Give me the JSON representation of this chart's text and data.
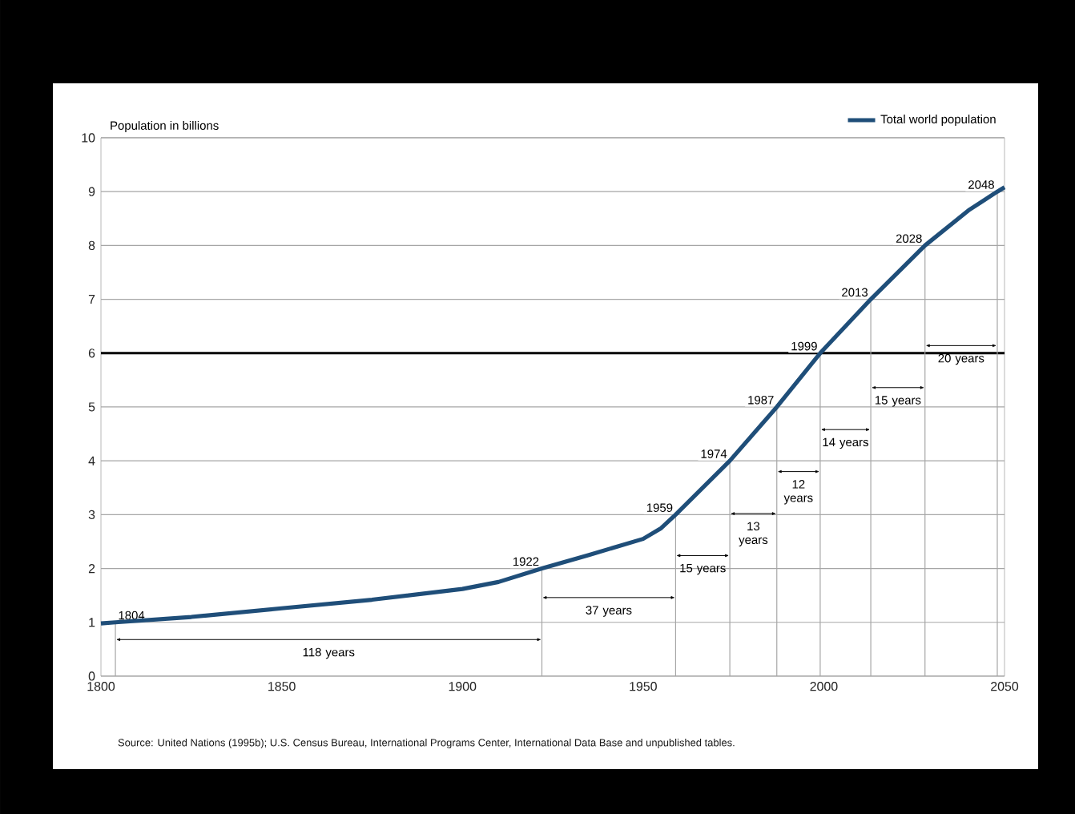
{
  "chart_data": {
    "type": "line",
    "ylabel": "Population in billions",
    "legend": "top right",
    "grid": "y",
    "marker": "none",
    "line_style": "solid",
    "xlim": [
      1800,
      2050
    ],
    "ylim": [
      0,
      10
    ],
    "xticks": [
      1800,
      1850,
      1900,
      1950,
      2000,
      2050
    ],
    "yticks": [
      0,
      1,
      2,
      3,
      4,
      5,
      6,
      7,
      8,
      9,
      10
    ],
    "x": [
      1800,
      1804,
      1825,
      1850,
      1875,
      1900,
      1910,
      1922,
      1935,
      1950,
      1955,
      1959,
      1974,
      1987,
      1999,
      2013,
      2028,
      2040,
      2048,
      2050
    ],
    "series": [
      {
        "name": "Total world population",
        "color": "#1f4e79",
        "values": [
          0.98,
          1,
          1.1,
          1.26,
          1.42,
          1.62,
          1.75,
          2,
          2.25,
          2.55,
          2.75,
          3,
          4,
          5,
          6,
          7,
          8,
          8.65,
          9,
          9.08
        ]
      }
    ],
    "ref_lines": [
      {
        "axis": "y",
        "value": 6,
        "color": "#000000"
      }
    ],
    "annotations": [
      {
        "text": "1804",
        "x": 1804,
        "y": 1
      },
      {
        "text": "1922",
        "x": 1922,
        "y": 2
      },
      {
        "text": "1959",
        "x": 1959,
        "y": 3
      },
      {
        "text": "1974",
        "x": 1974,
        "y": 4
      },
      {
        "text": "1987",
        "x": 1987,
        "y": 5
      },
      {
        "text": "1999",
        "x": 1999,
        "y": 6
      },
      {
        "text": "2013",
        "x": 2013,
        "y": 7
      },
      {
        "text": "2028",
        "x": 2028,
        "y": 8
      },
      {
        "text": "2048",
        "x": 2048,
        "y": 9
      },
      "118 years",
      "37 years",
      "15 years",
      "13 years",
      "12 years",
      "14 years",
      "15 years",
      "20 years",
      "Source:  United Nations (1995b); U.S. Census Bureau, International Programs Center, International Data Base and unpublished tables."
    ]
  }
}
